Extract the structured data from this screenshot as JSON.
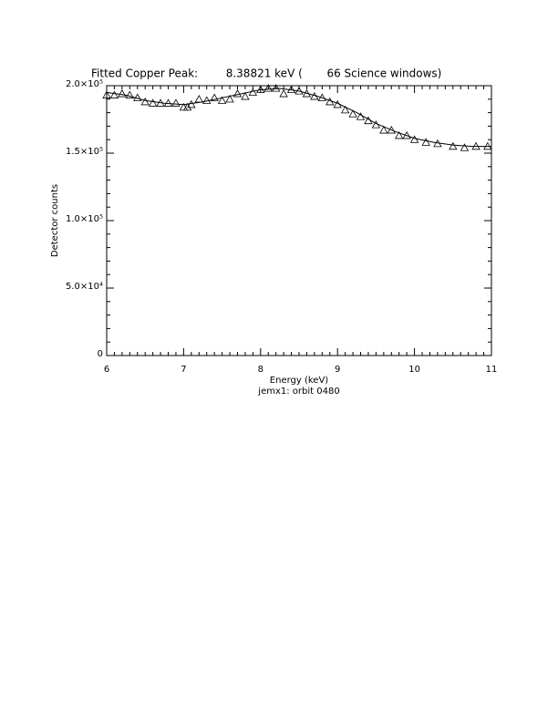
{
  "chart_data": {
    "type": "scatter",
    "title": "Fitted Copper Peak:        8.38821 keV (       66 Science windows)",
    "x_label": "Energy (keV)",
    "subtitle": "jemx1: orbit 0480",
    "y_label": "Detector counts",
    "xlim": [
      6,
      11
    ],
    "xticks": [
      6,
      7,
      8,
      9,
      10,
      11
    ],
    "ylim": [
      0,
      200000
    ],
    "yticks": [
      0,
      {
        "value": 50000,
        "label": "5.0×10⁴"
      },
      {
        "value": 100000,
        "label": "1.0×10⁵"
      },
      {
        "value": 150000,
        "label": "1.5×10⁵"
      },
      {
        "value": 200000,
        "label": "2.0×10⁵"
      }
    ],
    "x_minor_ticks": 10,
    "y_minor_ticks": 5,
    "series": [
      {
        "marker": "triangle",
        "color": "#000000",
        "x": [
          6.0,
          6.1,
          6.2,
          6.3,
          6.4,
          6.5,
          6.6,
          6.7,
          6.8,
          6.9,
          7.0,
          7.05,
          7.1,
          7.2,
          7.3,
          7.4,
          7.5,
          7.6,
          7.7,
          7.8,
          7.9,
          8.0,
          8.1,
          8.2,
          8.3,
          8.4,
          8.5,
          8.6,
          8.7,
          8.8,
          8.9,
          9.0,
          9.1,
          9.2,
          9.3,
          9.4,
          9.5,
          9.6,
          9.7,
          9.8,
          9.9,
          10.0,
          10.15,
          10.3,
          10.5,
          10.65,
          10.8,
          10.95
        ],
        "values": [
          193000,
          193000,
          194000,
          193000,
          191000,
          188000,
          187000,
          187000,
          187000,
          187000,
          184000,
          184000,
          186000,
          190000,
          189000,
          191000,
          189000,
          190000,
          194000,
          192000,
          195000,
          197000,
          198000,
          198000,
          194000,
          197000,
          196000,
          194000,
          192000,
          191000,
          188000,
          186000,
          182000,
          179000,
          177000,
          174000,
          171000,
          167000,
          167000,
          163000,
          163000,
          160000,
          158000,
          157000,
          155000,
          154000,
          155000,
          155000
        ]
      },
      {
        "marker": "line",
        "color": "#000000",
        "x": [
          6.0,
          6.25,
          6.5,
          6.75,
          7.0,
          7.25,
          7.5,
          7.75,
          8.0,
          8.25,
          8.5,
          8.75,
          9.0,
          9.25,
          9.5,
          9.75,
          10.0,
          10.25,
          10.5,
          10.75,
          11.0
        ],
        "values": [
          195000,
          193000,
          189000,
          187000,
          186000,
          188000,
          191000,
          194000,
          197000,
          198000,
          196000,
          192000,
          187000,
          180000,
          172000,
          166000,
          161000,
          158000,
          156000,
          155000,
          155000
        ]
      }
    ]
  }
}
